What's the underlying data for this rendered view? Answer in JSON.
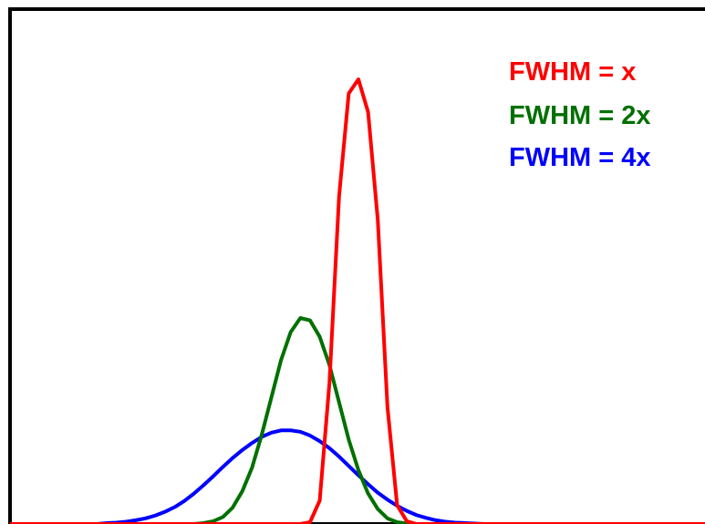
{
  "chart_data": {
    "type": "line",
    "title": "",
    "xlabel": "",
    "ylabel": "",
    "xlim": [
      -36,
      36
    ],
    "ylim": [
      0,
      1.1
    ],
    "grid": false,
    "legend_placement": "top-right",
    "x": [
      -36,
      -35,
      -34,
      -33,
      -32,
      -31,
      -30,
      -29,
      -28,
      -27,
      -26,
      -25,
      -24,
      -23,
      -22,
      -21,
      -20,
      -19,
      -18,
      -17,
      -16,
      -15,
      -14,
      -13,
      -12,
      -11,
      -10,
      -9,
      -8,
      -7,
      -6,
      -5,
      -4,
      -3,
      -2,
      -1,
      0,
      1,
      2,
      3,
      4,
      5,
      6,
      7,
      8,
      9,
      10,
      11,
      12,
      13,
      14,
      15,
      16,
      17,
      18,
      19,
      20,
      21,
      22,
      23,
      24,
      25,
      26,
      27,
      28,
      29,
      30,
      31,
      32,
      33,
      34,
      35,
      36
    ],
    "series": [
      {
        "name": "FWHM = x",
        "color": "#ff0000",
        "values": [
          0,
          0,
          0,
          0,
          0,
          0,
          0,
          0,
          0,
          0,
          0,
          0,
          0,
          0,
          0,
          0,
          0,
          0,
          0,
          0,
          0,
          0,
          0,
          0,
          0,
          0,
          0,
          0,
          0,
          0,
          0,
          0.004,
          0.05,
          0.3,
          0.7,
          0.92,
          0.95,
          0.88,
          0.65,
          0.25,
          0.04,
          0.006,
          0,
          0,
          0,
          0,
          0,
          0,
          0,
          0,
          0,
          0,
          0,
          0,
          0,
          0,
          0,
          0,
          0,
          0,
          0,
          0,
          0,
          0,
          0,
          0,
          0,
          0,
          0,
          0,
          0,
          0,
          0
        ]
      },
      {
        "name": "FWHM = 2x",
        "color": "#007000",
        "values": [
          0,
          0,
          0,
          0,
          0,
          0,
          0,
          0,
          0,
          0,
          0,
          0,
          0,
          0,
          0,
          0,
          0,
          0,
          0,
          0,
          0.002,
          0.006,
          0.015,
          0.035,
          0.07,
          0.12,
          0.19,
          0.27,
          0.35,
          0.41,
          0.44,
          0.435,
          0.4,
          0.34,
          0.26,
          0.18,
          0.115,
          0.065,
          0.032,
          0.012,
          0.004,
          0.001,
          0,
          0,
          0,
          0,
          0,
          0,
          0,
          0,
          0,
          0,
          0,
          0,
          0,
          0,
          0,
          0,
          0,
          0,
          0,
          0,
          0,
          0,
          0,
          0,
          0,
          0,
          0,
          0,
          0,
          0,
          0
        ]
      },
      {
        "name": "FWHM = 4x",
        "color": "#0000ff",
        "values": [
          0,
          0,
          0,
          0,
          0,
          0,
          0,
          0,
          0,
          0,
          0.002,
          0.003,
          0.005,
          0.008,
          0.012,
          0.018,
          0.026,
          0.036,
          0.049,
          0.065,
          0.083,
          0.102,
          0.122,
          0.141,
          0.158,
          0.173,
          0.186,
          0.195,
          0.2,
          0.2,
          0.197,
          0.189,
          0.177,
          0.162,
          0.144,
          0.124,
          0.104,
          0.085,
          0.067,
          0.052,
          0.039,
          0.028,
          0.019,
          0.013,
          0.008,
          0.005,
          0.003,
          0.002,
          0.001,
          0,
          0,
          0,
          0,
          0,
          0,
          0,
          0,
          0,
          0,
          0,
          0,
          0,
          0,
          0,
          0,
          0,
          0,
          0,
          0,
          0,
          0,
          0,
          0
        ]
      }
    ]
  }
}
